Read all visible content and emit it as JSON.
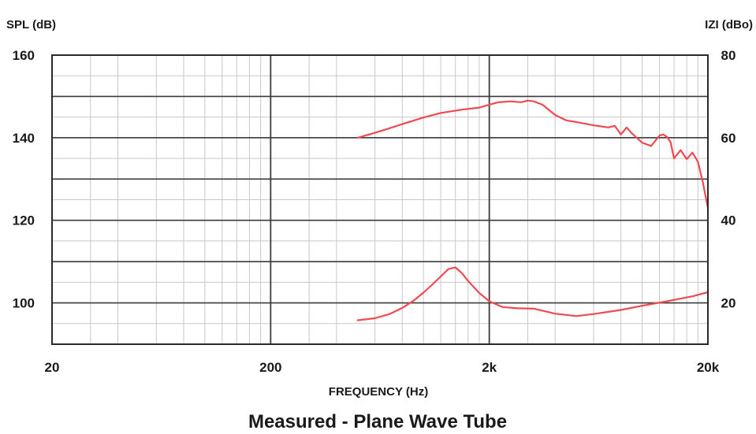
{
  "chart_data": {
    "type": "line",
    "title": "Measured - Plane Wave Tube",
    "xlabel": "FREQUENCY (Hz)",
    "ylabel_left": "SPL (dB)",
    "ylabel_right": "IZI (dBo)",
    "x_scale": "log",
    "xlim": [
      20,
      20000
    ],
    "ylim_left": [
      90,
      160
    ],
    "ylim_right": [
      10,
      80
    ],
    "x_ticks": [
      {
        "value": 20,
        "label": "20"
      },
      {
        "value": 200,
        "label": "200"
      },
      {
        "value": 2000,
        "label": "2k"
      },
      {
        "value": 20000,
        "label": "20k"
      }
    ],
    "y_ticks_left": [
      {
        "value": 160,
        "label": "160"
      },
      {
        "value": 140,
        "label": "140"
      },
      {
        "value": 120,
        "label": "120"
      },
      {
        "value": 100,
        "label": "100"
      }
    ],
    "y_ticks_right": [
      {
        "value": 80,
        "label": "80"
      },
      {
        "value": 60,
        "label": "60"
      },
      {
        "value": 40,
        "label": "40"
      },
      {
        "value": 20,
        "label": "20"
      }
    ],
    "grid": true,
    "colors": {
      "series": "#ef4a4f",
      "grid_major": "#3a3a3a",
      "grid_minor": "#c8c8c8"
    },
    "series": [
      {
        "axis": "left",
        "x": [
          500,
          600,
          700,
          800,
          1000,
          1200,
          1500,
          1800,
          2000,
          2200,
          2500,
          2800,
          3000,
          3200,
          3500,
          4000,
          4500,
          5000,
          6000,
          7000,
          7500,
          8000,
          8500,
          9000,
          10000,
          11000,
          12000,
          12500,
          13000,
          13500,
          14000,
          15000,
          16000,
          17000,
          18000,
          19000,
          20000
        ],
        "y": [
          140,
          141.2,
          142.3,
          143.3,
          144.9,
          146,
          146.8,
          147.3,
          148,
          148.6,
          148.8,
          148.6,
          149,
          148.8,
          148,
          145.5,
          144.2,
          143.8,
          143,
          142.5,
          142.9,
          140.8,
          142.5,
          141,
          138.8,
          138,
          140.5,
          140.8,
          140.2,
          138.9,
          135,
          137,
          134.8,
          136.4,
          134.2,
          129,
          123
        ]
      },
      {
        "axis": "left",
        "x": [
          500,
          600,
          700,
          800,
          900,
          1000,
          1100,
          1200,
          1300,
          1400,
          1500,
          1600,
          1800,
          2000,
          2300,
          2700,
          3200,
          4000,
          5000,
          6000,
          8000,
          10000,
          13000,
          17000,
          20000
        ],
        "y": [
          95.8,
          96.3,
          97.3,
          98.8,
          100.5,
          102.5,
          104.5,
          106.4,
          108.2,
          108.6,
          107.2,
          105.3,
          102.4,
          100.4,
          99,
          98.7,
          98.6,
          97.4,
          96.8,
          97.3,
          98.3,
          99.3,
          100.4,
          101.6,
          102.6
        ]
      }
    ]
  }
}
